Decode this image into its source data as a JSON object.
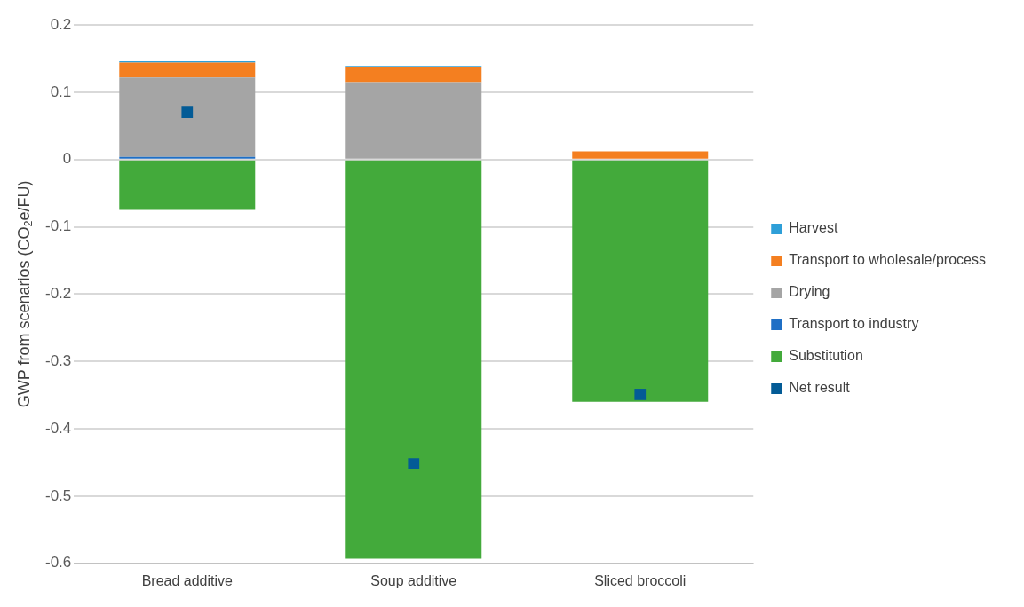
{
  "chart_data": {
    "type": "bar",
    "stacked": true,
    "ylabel": "GWP from scenarios (CO$_{2}$e/FU)",
    "categories": [
      "Bread additive",
      "Soup additive",
      "Sliced broccoli"
    ],
    "ylim": [
      -0.6,
      0.2
    ],
    "yticks": [
      0.2,
      0.1,
      0,
      -0.1,
      -0.2,
      -0.3,
      -0.4,
      -0.5,
      -0.6
    ],
    "grid": "y",
    "legend": "right",
    "series": [
      {
        "name": "Transport to industry",
        "color": "#1f6fc5",
        "values": [
          0.004,
          0,
          0
        ]
      },
      {
        "name": "Drying",
        "color": "#a5a5a5",
        "values": [
          0.118,
          0.115,
          0
        ]
      },
      {
        "name": "Transport to wholesale/process",
        "color": "#f47f20",
        "values": [
          0.022,
          0.022,
          0.012
        ]
      },
      {
        "name": "Harvest",
        "color": "#2e9fd8",
        "values": [
          0.002,
          0.002,
          null
        ]
      },
      {
        "name": "Substitution",
        "color": "#43aa3b",
        "values": [
          -0.075,
          -0.593,
          -0.36
        ]
      },
      {
        "name": "Net result",
        "type": "scatter",
        "marker": "square",
        "color": "#035b96",
        "x": [
          "Bread additive",
          "Soup additive",
          "Sliced broccoli"
        ],
        "values": [
          0.07,
          -0.452,
          -0.349
        ]
      }
    ]
  }
}
